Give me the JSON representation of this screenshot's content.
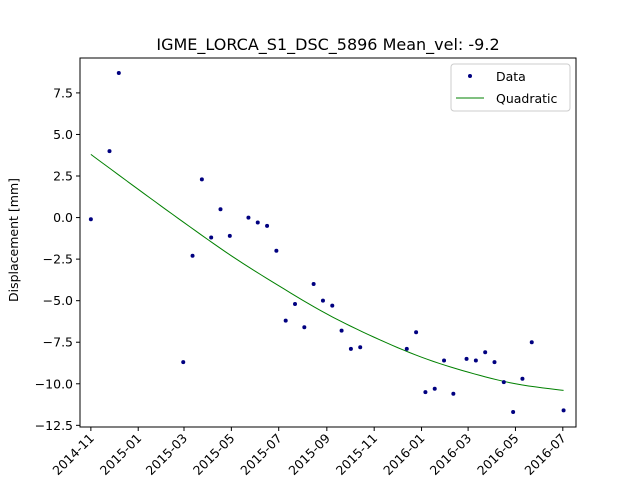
{
  "chart_data": {
    "type": "scatter",
    "title": "IGME_LORCA_S1_DSC_5896    Mean_vel: -9.2",
    "xlabel": "",
    "ylabel": "Displacement [mm]",
    "x_axis_type": "date",
    "xlim": [
      "2014-10-18",
      "2016-07-18"
    ],
    "ylim": [
      -12.6,
      9.6
    ],
    "x_ticks": [
      "2014-11",
      "2015-01",
      "2015-03",
      "2015-05",
      "2015-07",
      "2015-09",
      "2015-11",
      "2016-01",
      "2016-03",
      "2016-05",
      "2016-07"
    ],
    "y_ticks": [
      7.5,
      5.0,
      2.5,
      0.0,
      -2.5,
      -5.0,
      -7.5,
      -10.0,
      -12.5
    ],
    "y_tick_labels": [
      "7.5",
      "5.0",
      "2.5",
      "0.0",
      "−2.5",
      "−5.0",
      "−7.5",
      "−10.0",
      "−12.5"
    ],
    "legend": {
      "placement": "top-right",
      "entries": [
        "Data",
        "Quadratic"
      ]
    },
    "grid": false,
    "series": [
      {
        "name": "Data",
        "kind": "scatter",
        "color": "#000080",
        "x": [
          "2014-11-01",
          "2014-11-25",
          "2014-12-07",
          "2015-02-28",
          "2015-03-12",
          "2015-03-24",
          "2015-04-05",
          "2015-04-17",
          "2015-04-29",
          "2015-05-23",
          "2015-06-04",
          "2015-06-16",
          "2015-06-28",
          "2015-07-10",
          "2015-07-22",
          "2015-08-03",
          "2015-08-15",
          "2015-08-27",
          "2015-09-08",
          "2015-09-20",
          "2015-10-02",
          "2015-10-14",
          "2015-12-13",
          "2015-12-25",
          "2016-01-06",
          "2016-01-18",
          "2016-01-30",
          "2016-02-11",
          "2016-02-28",
          "2016-03-11",
          "2016-03-23",
          "2016-04-04",
          "2016-04-16",
          "2016-04-28",
          "2016-05-10",
          "2016-05-22",
          "2016-07-02"
        ],
        "y": [
          -0.1,
          4.0,
          8.7,
          -8.7,
          -2.3,
          2.3,
          -1.2,
          0.5,
          -1.1,
          0.0,
          -0.3,
          -0.5,
          -2.0,
          -6.2,
          -5.2,
          -6.6,
          -4.0,
          -5.0,
          -5.3,
          -6.8,
          -7.9,
          -7.8,
          -7.9,
          -6.9,
          -10.5,
          -10.3,
          -8.6,
          -10.6,
          -8.5,
          -8.6,
          -8.1,
          -8.7,
          -9.9,
          -11.7,
          -9.7,
          -7.5,
          -11.6
        ]
      },
      {
        "name": "Quadratic",
        "kind": "line",
        "color": "#008000",
        "x": [
          "2014-11-01",
          "2015-01-01",
          "2015-03-01",
          "2015-05-01",
          "2015-07-01",
          "2015-09-01",
          "2015-11-01",
          "2016-01-01",
          "2016-03-01",
          "2016-05-01",
          "2016-07-02"
        ],
        "y": [
          3.8,
          1.7,
          -0.3,
          -2.3,
          -4.1,
          -5.8,
          -7.2,
          -8.4,
          -9.3,
          -10.0,
          -10.4
        ]
      }
    ]
  }
}
